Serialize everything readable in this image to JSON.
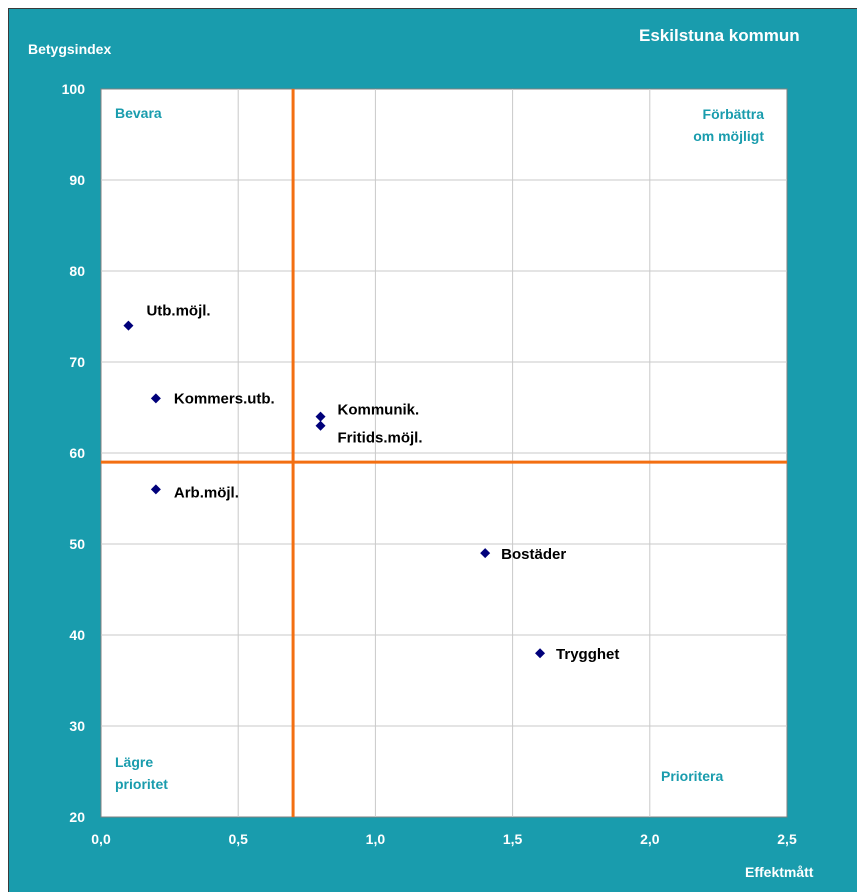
{
  "header": {
    "title": "Eskilstuna kommun",
    "y_axis_title": "Betygsindex",
    "x_axis_title": "Effektmått"
  },
  "quadrants": {
    "top_left": [
      "Bevara"
    ],
    "top_right": [
      "Förbättra",
      "om möjligt"
    ],
    "bottom_left": [
      "Lägre",
      "prioritet"
    ],
    "bottom_right": [
      "Prioritera"
    ]
  },
  "colors": {
    "background": "#199cad",
    "plot_area": "#ffffff",
    "gridline": "#c9c9c9",
    "threshold": "#f36f12",
    "marker": "#00007a",
    "quadrant_text": "#199cad",
    "axis_text": "#ffffff"
  },
  "chart_data": {
    "type": "scatter",
    "title": "Eskilstuna kommun",
    "xlabel": "Effektmått",
    "ylabel": "Betygsindex",
    "xlim": [
      0,
      2.5
    ],
    "ylim": [
      20,
      100
    ],
    "x_ticks": [
      "0,0",
      "0,5",
      "1,0",
      "1,5",
      "2,0",
      "2,5"
    ],
    "y_ticks": [
      "20",
      "30",
      "40",
      "50",
      "60",
      "70",
      "80",
      "90",
      "100"
    ],
    "grid": true,
    "thresholds": {
      "x": 0.7,
      "y": 59
    },
    "points": [
      {
        "label": "Utb.möjl.",
        "x": 0.1,
        "y": 74
      },
      {
        "label": "Kommers.utb.",
        "x": 0.2,
        "y": 66
      },
      {
        "label": "Arb.möjl.",
        "x": 0.2,
        "y": 56
      },
      {
        "label": "Kommunik.",
        "x": 0.8,
        "y": 64
      },
      {
        "label": "Fritids.möjl.",
        "x": 0.8,
        "y": 63
      },
      {
        "label": "Bostäder",
        "x": 1.4,
        "y": 49
      },
      {
        "label": "Trygghet",
        "x": 1.6,
        "y": 38
      }
    ]
  }
}
